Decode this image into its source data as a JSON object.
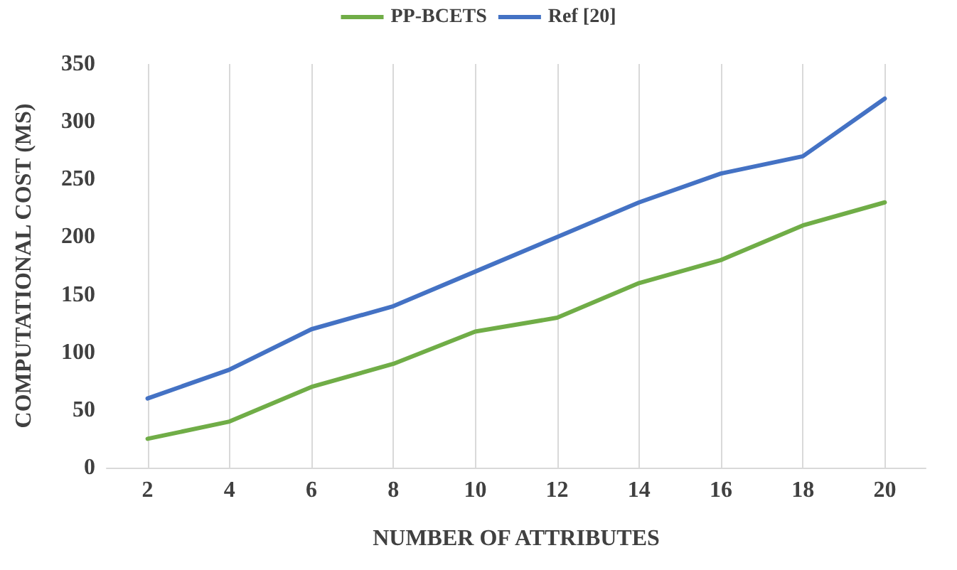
{
  "chart_data": {
    "type": "line",
    "xlabel": "NUMBER OF ATTRIBUTES",
    "ylabel": "COMPUTATIONAL COST (MS)",
    "x": [
      2,
      4,
      6,
      8,
      10,
      12,
      14,
      16,
      18,
      20
    ],
    "xlim": [
      1,
      21
    ],
    "xticks": [
      2,
      4,
      6,
      8,
      10,
      12,
      14,
      16,
      18,
      20
    ],
    "ylim": [
      0,
      350
    ],
    "yticks": [
      0,
      50,
      100,
      150,
      200,
      250,
      300,
      350
    ],
    "series": [
      {
        "name": "PP-BCETS",
        "color": "#70ad47",
        "values": [
          25,
          40,
          70,
          90,
          118,
          130,
          160,
          180,
          210,
          230
        ]
      },
      {
        "name": "Ref [20]",
        "color": "#4472c4",
        "values": [
          60,
          85,
          120,
          140,
          170,
          200,
          230,
          255,
          270,
          320
        ]
      }
    ],
    "grid": "x",
    "legend": "top",
    "marker": "none",
    "line_style": "solid"
  }
}
